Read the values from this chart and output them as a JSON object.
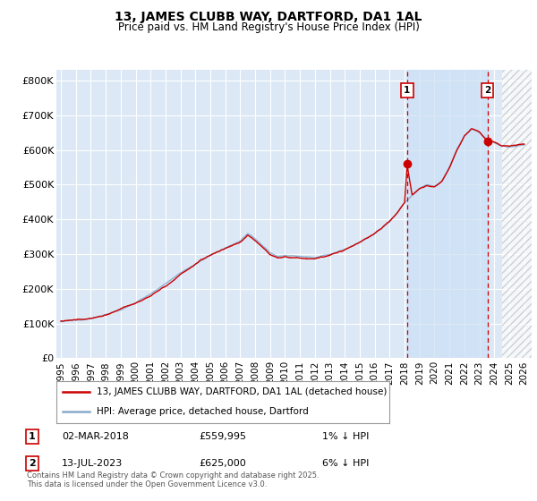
{
  "title": "13, JAMES CLUBB WAY, DARTFORD, DA1 1AL",
  "subtitle": "Price paid vs. HM Land Registry's House Price Index (HPI)",
  "ylabel_ticks": [
    "£0",
    "£100K",
    "£200K",
    "£300K",
    "£400K",
    "£500K",
    "£600K",
    "£700K",
    "£800K"
  ],
  "ytick_values": [
    0,
    100000,
    200000,
    300000,
    400000,
    500000,
    600000,
    700000,
    800000
  ],
  "ylim": [
    0,
    830000
  ],
  "xlim_start": 1994.7,
  "xlim_end": 2026.5,
  "bg_color": "#dce8f5",
  "grid_color": "#ffffff",
  "red_color": "#cc0000",
  "blue_color": "#88aacc",
  "highlight_color": "#d0e4f7",
  "hatch_start": 2024.5,
  "sale1_x": 2018.17,
  "sale1_y": 559995,
  "sale2_x": 2023.54,
  "sale2_y": 625000,
  "legend_line1": "13, JAMES CLUBB WAY, DARTFORD, DA1 1AL (detached house)",
  "legend_line2": "HPI: Average price, detached house, Dartford",
  "ann1_date": "02-MAR-2018",
  "ann1_price": "£559,995",
  "ann1_hpi": "1% ↓ HPI",
  "ann2_date": "13-JUL-2023",
  "ann2_price": "£625,000",
  "ann2_hpi": "6% ↓ HPI",
  "footer": "Contains HM Land Registry data © Crown copyright and database right 2025.\nThis data is licensed under the Open Government Licence v3.0.",
  "xtick_years": [
    1995,
    1996,
    1997,
    1998,
    1999,
    2000,
    2001,
    2002,
    2003,
    2004,
    2005,
    2006,
    2007,
    2008,
    2009,
    2010,
    2011,
    2012,
    2013,
    2014,
    2015,
    2016,
    2017,
    2018,
    2019,
    2020,
    2021,
    2022,
    2023,
    2024,
    2025,
    2026
  ]
}
